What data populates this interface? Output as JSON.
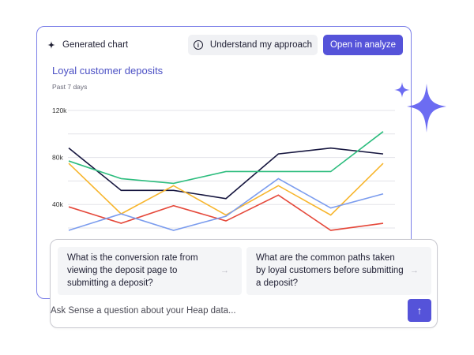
{
  "header": {
    "generated_label": "Generated chart",
    "approach_button": "Understand my approach",
    "open_button": "Open in analyze"
  },
  "chart_title": "Loyal customer deposits",
  "chart_subtitle": "Past 7 days",
  "colors": {
    "accent": "#5553d9",
    "card_border": "#7b7fe8",
    "sparkle": "#6c6cf2",
    "title": "#4a4fc4"
  },
  "chart_data": {
    "type": "line",
    "title": "Loyal customer deposits",
    "subtitle": "Past 7 days",
    "xlabel": "",
    "ylabel": "",
    "x": [
      1,
      2,
      3,
      4,
      5,
      6,
      7
    ],
    "ylim": [
      20000,
      120000
    ],
    "yticks": [
      40000,
      80000,
      120000
    ],
    "ytick_labels": [
      "40k",
      "80k",
      "120k"
    ],
    "grid": true,
    "legend": null,
    "series": [
      {
        "name": "series-navy",
        "color": "#16163f",
        "values": [
          88000,
          52000,
          52000,
          45000,
          83000,
          88000,
          83000
        ]
      },
      {
        "name": "series-green",
        "color": "#2dbd7e",
        "values": [
          77000,
          62000,
          58000,
          68000,
          68000,
          68000,
          102000
        ]
      },
      {
        "name": "series-yellow",
        "color": "#f7b52c",
        "values": [
          75000,
          32000,
          56000,
          31000,
          56000,
          31000,
          75000
        ]
      },
      {
        "name": "series-red",
        "color": "#e5483a",
        "values": [
          38000,
          24000,
          39000,
          26000,
          48000,
          18000,
          24000
        ]
      },
      {
        "name": "series-blue",
        "color": "#7b9cee",
        "values": [
          18000,
          32000,
          18000,
          30000,
          62000,
          37000,
          49000
        ]
      }
    ]
  },
  "suggestions": [
    {
      "text": "What is the conversion rate from viewing the deposit page to submitting a deposit?",
      "arrow": "→"
    },
    {
      "text": "What are the common paths taken by loyal customers before submitting a deposit?",
      "arrow": "→"
    }
  ],
  "ask": {
    "placeholder": "Ask Sense a question about your Heap data...",
    "send_icon": "↑"
  }
}
